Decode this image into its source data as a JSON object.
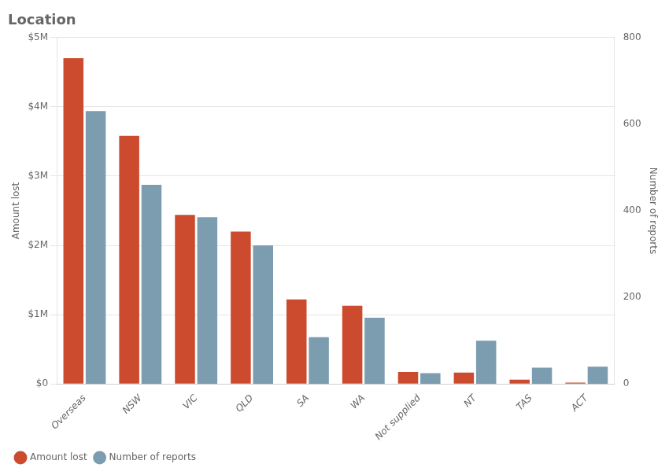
{
  "chart_data": {
    "type": "bar",
    "title": "Location",
    "categories": [
      "Overseas",
      "NSW",
      "VIC",
      "QLD",
      "SA",
      "WA",
      "Not supplied",
      "NT",
      "TAS",
      "ACT"
    ],
    "series": [
      {
        "name": "Amount lost",
        "color": "#cc4b2e",
        "values": [
          4700000,
          3580000,
          2440000,
          2200000,
          1220000,
          1130000,
          175000,
          165000,
          65000,
          20000
        ]
      },
      {
        "name": "Number of reports",
        "color": "#7b9daf",
        "axis": "y2",
        "values": [
          630,
          460,
          385,
          320,
          108,
          153,
          25,
          100,
          38,
          40
        ]
      }
    ],
    "ylabel": "Amount lost",
    "y2label": "Number of reports",
    "ylim": [
      0,
      5000000
    ],
    "yticks": [
      {
        "value": 0,
        "label": "$0"
      },
      {
        "value": 1000000,
        "label": "$1M"
      },
      {
        "value": 2000000,
        "label": "$2M"
      },
      {
        "value": 3000000,
        "label": "$3M"
      },
      {
        "value": 4000000,
        "label": "$4M"
      },
      {
        "value": 5000000,
        "label": "$5M"
      }
    ],
    "y2lim": [
      0,
      800
    ],
    "y2ticks": [
      0,
      200,
      400,
      600,
      800
    ],
    "grid": true,
    "legend": "bottom"
  }
}
